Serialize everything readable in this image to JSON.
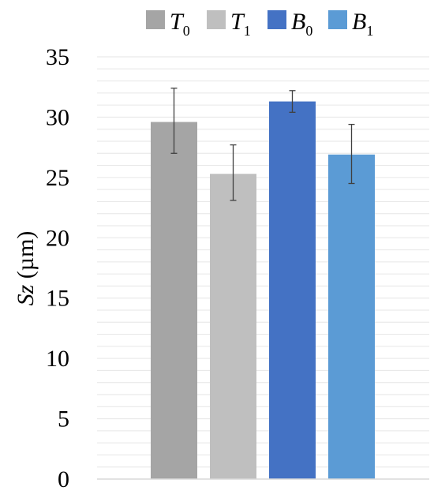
{
  "chart_data": {
    "type": "bar",
    "title": "",
    "ylabel": {
      "var": "Sz",
      "unit": " (µm)"
    },
    "xlabel": "",
    "ylim": [
      0,
      35
    ],
    "yticks": [
      "0",
      "5",
      "10",
      "15",
      "20",
      "25",
      "30",
      "35"
    ],
    "grid": true,
    "legend_position": "top",
    "series": [
      {
        "base": "T",
        "sub": "0",
        "value": 29.6,
        "err_low": 27.0,
        "err_high": 32.4,
        "color": "#a5a5a5"
      },
      {
        "base": "T",
        "sub": "1",
        "value": 25.3,
        "err_low": 23.1,
        "err_high": 27.7,
        "color": "#bfbfbf"
      },
      {
        "base": "B",
        "sub": "0",
        "value": 31.3,
        "err_low": 30.4,
        "err_high": 32.2,
        "color": "#4472c4"
      },
      {
        "base": "B",
        "sub": "1",
        "value": 26.9,
        "err_low": 24.5,
        "err_high": 29.4,
        "color": "#5b9bd5"
      }
    ]
  }
}
